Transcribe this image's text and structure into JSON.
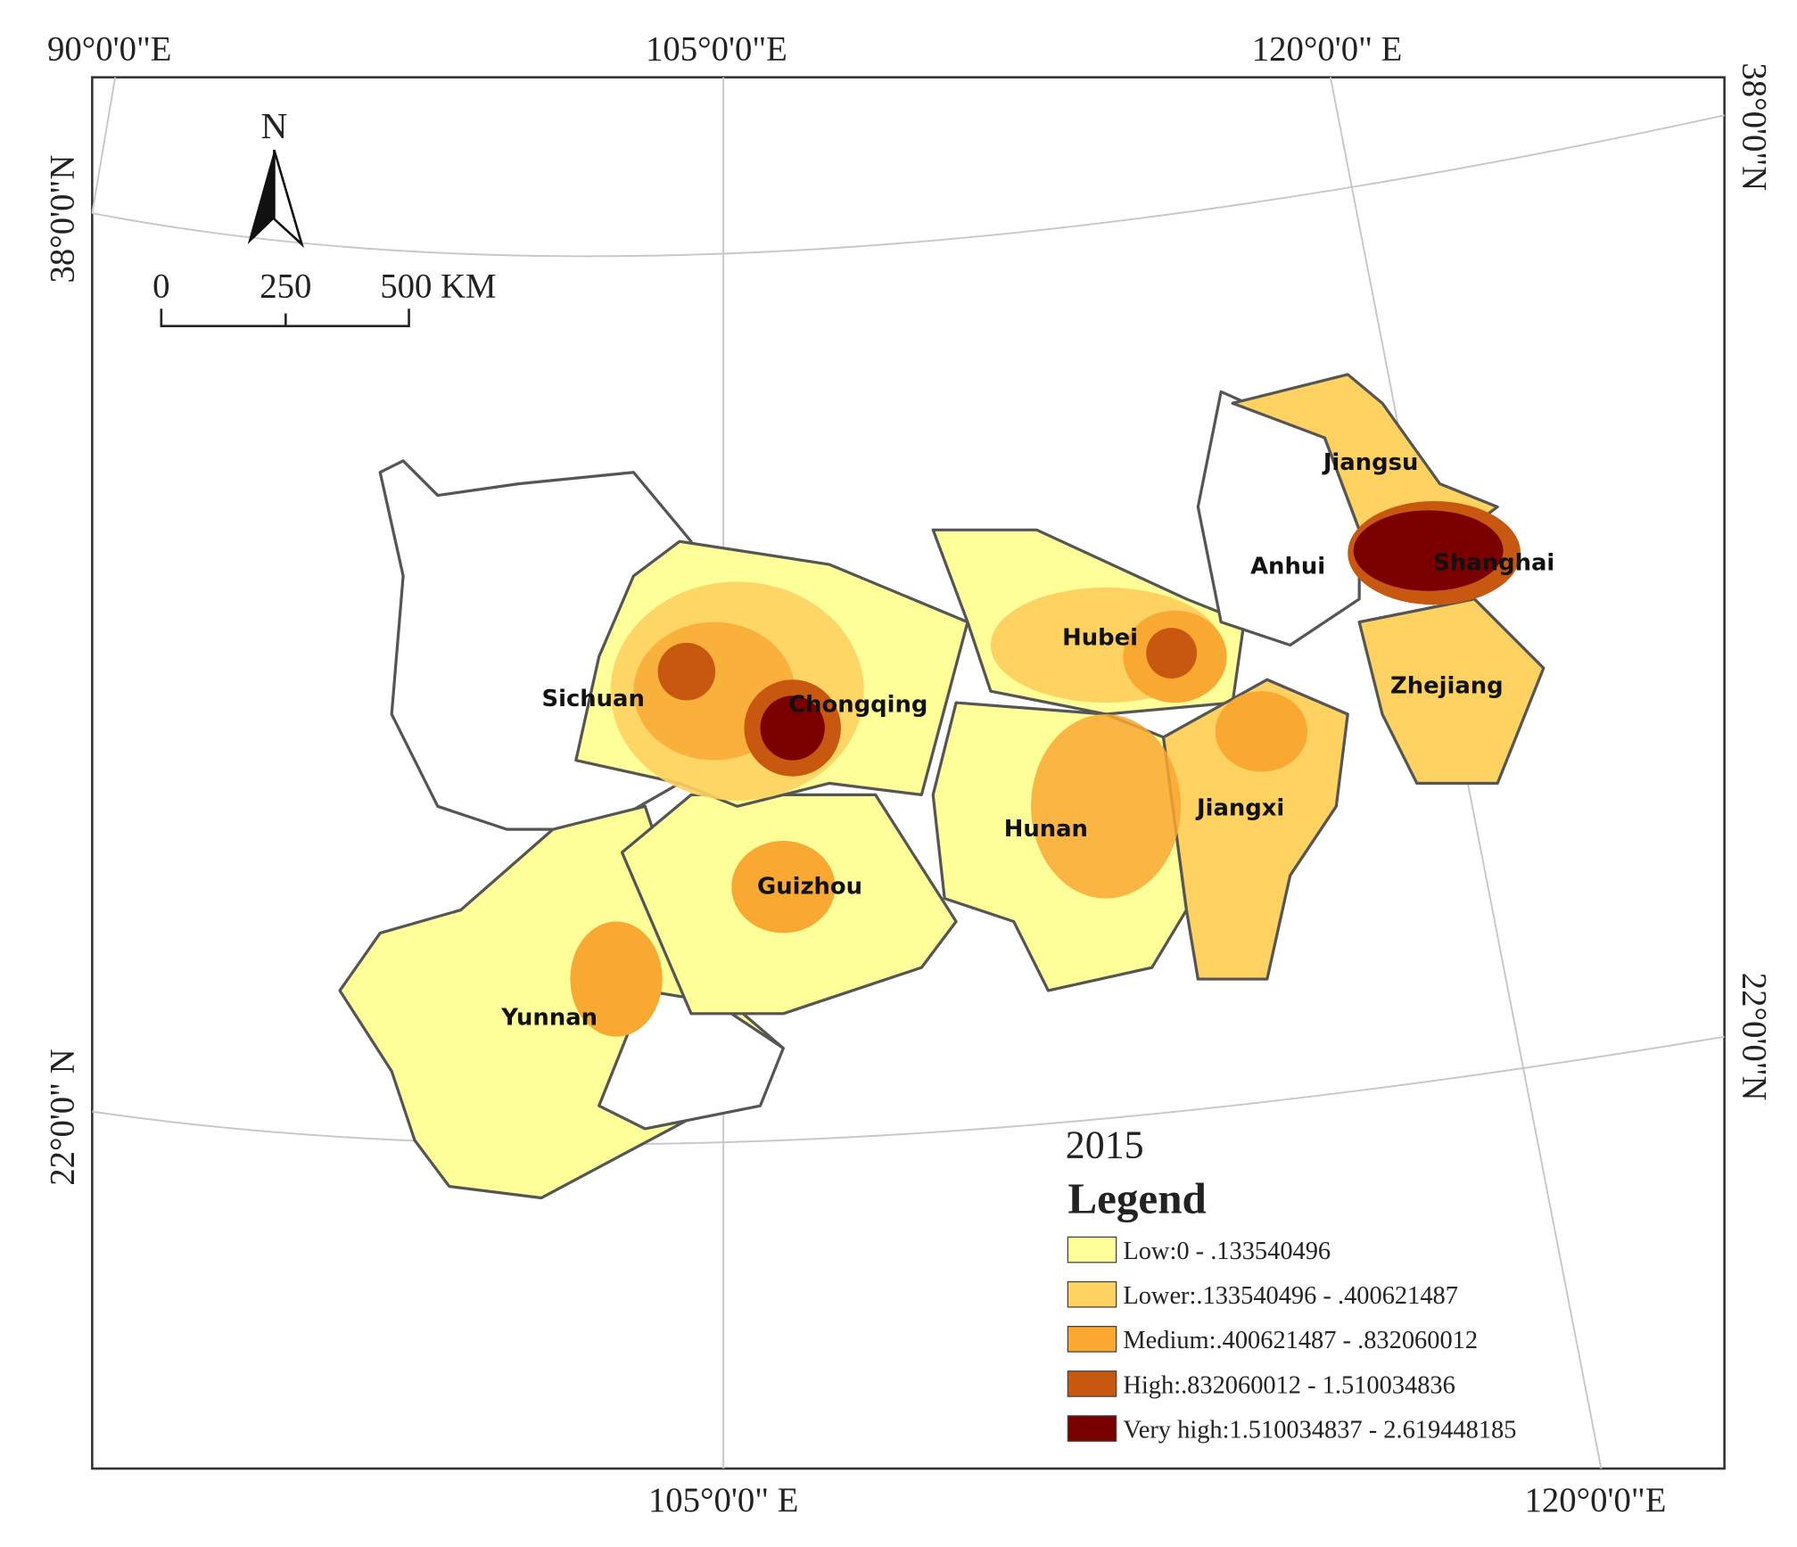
{
  "graticule": {
    "top": [
      "90°0'0\"E",
      "105°0'0\"E",
      "120°0'0\" E"
    ],
    "bottom": [
      "105°0'0\" E",
      "120°0'0\"E"
    ],
    "left": [
      "38°0'0\"N",
      "22°0'0\" N"
    ],
    "right": [
      "38°0'0\"N",
      "22°0'0\"N"
    ]
  },
  "north_arrow": "N",
  "scale_bar": [
    "0",
    "250",
    "500 KM"
  ],
  "provinces": [
    "Jiangsu",
    "Anhui",
    "Shanghai",
    "Hubei",
    "Sichuan",
    "Chongqing",
    "Zhejiang",
    "Hunan",
    "Jiangxi",
    "Guizhou",
    "Yunnan"
  ],
  "year": "2015",
  "legend": {
    "title": "Legend",
    "items": [
      {
        "label": "Low:0 - .133540496",
        "color": "#ffff99"
      },
      {
        "label": "Lower:.133540496 - .400621487",
        "color": "#fdd260"
      },
      {
        "label": "Medium:.400621487 - .832060012",
        "color": "#f9a832"
      },
      {
        "label": "High:.832060012 - 1.510034836",
        "color": "#c8570f"
      },
      {
        "label": "Very high:1.510034837 - 2.619448185",
        "color": "#7a0000"
      }
    ]
  }
}
